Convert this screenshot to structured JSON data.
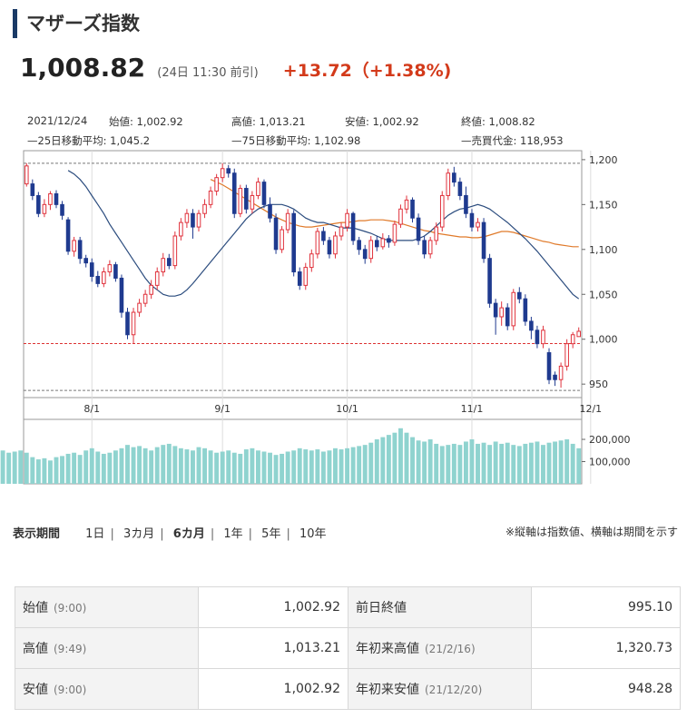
{
  "title": "マザーズ指数",
  "price": {
    "value": "1,008.82",
    "time": "(24日 11:30 前引)",
    "change": "+13.72（+1.38%)"
  },
  "info": {
    "date": "2021/12/24",
    "open_label": "始値: 1,002.92",
    "high_label": "高値: 1,013.21",
    "low_label": "安値: 1,002.92",
    "close_label": "終値: 1,008.82",
    "ma25_label": "—25日移動平均: 1,045.2",
    "ma75_label": "—75日移動平均: 1,102.98",
    "volume_label": "—売買代金: 118,953"
  },
  "chart_data": {
    "type": "candlestick",
    "price_axis": {
      "ticks": [
        "1,200",
        "1,150",
        "1,100",
        "1,050",
        "1,000",
        "950"
      ],
      "tick_values": [
        1200,
        1150,
        1100,
        1050,
        1000,
        950
      ],
      "range": [
        935,
        1210
      ]
    },
    "volume_axis": {
      "ticks": [
        "200,000",
        "100,000"
      ],
      "tick_values": [
        200000,
        100000
      ],
      "range": [
        0,
        290000
      ]
    },
    "x_ticks": [
      "8/1",
      "9/1",
      "10/1",
      "11/1",
      "12/1"
    ],
    "x_tick_index": [
      11,
      33,
      54,
      75,
      95
    ],
    "reference_lines": {
      "prev_close": 995.1,
      "high_line": 1196,
      "low_line": 943
    },
    "candles": [
      {
        "o": 1173,
        "c": 1193,
        "h": 1196,
        "l": 1170
      },
      {
        "o": 1173,
        "c": 1160,
        "h": 1178,
        "l": 1155
      },
      {
        "o": 1160,
        "c": 1140,
        "h": 1164,
        "l": 1136
      },
      {
        "o": 1140,
        "c": 1150,
        "h": 1156,
        "l": 1136
      },
      {
        "o": 1150,
        "c": 1162,
        "h": 1165,
        "l": 1144
      },
      {
        "o": 1162,
        "c": 1150,
        "h": 1166,
        "l": 1146
      },
      {
        "o": 1150,
        "c": 1138,
        "h": 1154,
        "l": 1133
      },
      {
        "o": 1133,
        "c": 1098,
        "h": 1136,
        "l": 1094
      },
      {
        "o": 1098,
        "c": 1110,
        "h": 1114,
        "l": 1092
      },
      {
        "o": 1110,
        "c": 1090,
        "h": 1114,
        "l": 1084
      },
      {
        "o": 1090,
        "c": 1085,
        "h": 1094,
        "l": 1080
      },
      {
        "o": 1085,
        "c": 1070,
        "h": 1090,
        "l": 1064
      },
      {
        "o": 1070,
        "c": 1062,
        "h": 1076,
        "l": 1058
      },
      {
        "o": 1062,
        "c": 1075,
        "h": 1080,
        "l": 1058
      },
      {
        "o": 1075,
        "c": 1083,
        "h": 1088,
        "l": 1070
      },
      {
        "o": 1083,
        "c": 1068,
        "h": 1086,
        "l": 1064
      },
      {
        "o": 1068,
        "c": 1030,
        "h": 1072,
        "l": 1024
      },
      {
        "o": 1030,
        "c": 1005,
        "h": 1035,
        "l": 1000
      },
      {
        "o": 1005,
        "c": 1030,
        "h": 1035,
        "l": 995
      },
      {
        "o": 1030,
        "c": 1040,
        "h": 1045,
        "l": 1025
      },
      {
        "o": 1040,
        "c": 1050,
        "h": 1055,
        "l": 1036
      },
      {
        "o": 1050,
        "c": 1060,
        "h": 1066,
        "l": 1045
      },
      {
        "o": 1060,
        "c": 1075,
        "h": 1080,
        "l": 1055
      },
      {
        "o": 1075,
        "c": 1090,
        "h": 1096,
        "l": 1070
      },
      {
        "o": 1090,
        "c": 1082,
        "h": 1095,
        "l": 1078
      },
      {
        "o": 1082,
        "c": 1115,
        "h": 1120,
        "l": 1078
      },
      {
        "o": 1115,
        "c": 1130,
        "h": 1135,
        "l": 1110
      },
      {
        "o": 1130,
        "c": 1140,
        "h": 1145,
        "l": 1124
      },
      {
        "o": 1140,
        "c": 1125,
        "h": 1145,
        "l": 1112
      },
      {
        "o": 1125,
        "c": 1140,
        "h": 1144,
        "l": 1120
      },
      {
        "o": 1140,
        "c": 1150,
        "h": 1156,
        "l": 1135
      },
      {
        "o": 1150,
        "c": 1165,
        "h": 1170,
        "l": 1146
      },
      {
        "o": 1165,
        "c": 1180,
        "h": 1184,
        "l": 1160
      },
      {
        "o": 1180,
        "c": 1190,
        "h": 1196,
        "l": 1175
      },
      {
        "o": 1190,
        "c": 1185,
        "h": 1194,
        "l": 1180
      },
      {
        "o": 1185,
        "c": 1140,
        "h": 1190,
        "l": 1135
      },
      {
        "o": 1140,
        "c": 1168,
        "h": 1172,
        "l": 1136
      },
      {
        "o": 1168,
        "c": 1145,
        "h": 1172,
        "l": 1140
      },
      {
        "o": 1145,
        "c": 1160,
        "h": 1165,
        "l": 1140
      },
      {
        "o": 1160,
        "c": 1175,
        "h": 1180,
        "l": 1156
      },
      {
        "o": 1175,
        "c": 1150,
        "h": 1178,
        "l": 1146
      },
      {
        "o": 1150,
        "c": 1135,
        "h": 1158,
        "l": 1130
      },
      {
        "o": 1135,
        "c": 1100,
        "h": 1140,
        "l": 1095
      },
      {
        "o": 1100,
        "c": 1122,
        "h": 1126,
        "l": 1096
      },
      {
        "o": 1122,
        "c": 1140,
        "h": 1145,
        "l": 1118
      },
      {
        "o": 1140,
        "c": 1075,
        "h": 1144,
        "l": 1070
      },
      {
        "o": 1075,
        "c": 1060,
        "h": 1080,
        "l": 1055
      },
      {
        "o": 1060,
        "c": 1080,
        "h": 1085,
        "l": 1055
      },
      {
        "o": 1080,
        "c": 1095,
        "h": 1100,
        "l": 1075
      },
      {
        "o": 1095,
        "c": 1120,
        "h": 1124,
        "l": 1090
      },
      {
        "o": 1120,
        "c": 1110,
        "h": 1125,
        "l": 1105
      },
      {
        "o": 1110,
        "c": 1095,
        "h": 1114,
        "l": 1090
      },
      {
        "o": 1095,
        "c": 1115,
        "h": 1120,
        "l": 1090
      },
      {
        "o": 1115,
        "c": 1125,
        "h": 1130,
        "l": 1110
      },
      {
        "o": 1125,
        "c": 1140,
        "h": 1145,
        "l": 1120
      },
      {
        "o": 1140,
        "c": 1110,
        "h": 1142,
        "l": 1105
      },
      {
        "o": 1110,
        "c": 1100,
        "h": 1114,
        "l": 1094
      },
      {
        "o": 1100,
        "c": 1090,
        "h": 1105,
        "l": 1084
      },
      {
        "o": 1090,
        "c": 1110,
        "h": 1115,
        "l": 1085
      },
      {
        "o": 1110,
        "c": 1103,
        "h": 1115,
        "l": 1098
      },
      {
        "o": 1103,
        "c": 1112,
        "h": 1118,
        "l": 1100
      },
      {
        "o": 1112,
        "c": 1108,
        "h": 1116,
        "l": 1102
      },
      {
        "o": 1108,
        "c": 1128,
        "h": 1132,
        "l": 1104
      },
      {
        "o": 1128,
        "c": 1145,
        "h": 1150,
        "l": 1124
      },
      {
        "o": 1145,
        "c": 1155,
        "h": 1160,
        "l": 1140
      },
      {
        "o": 1155,
        "c": 1135,
        "h": 1158,
        "l": 1130
      },
      {
        "o": 1135,
        "c": 1110,
        "h": 1140,
        "l": 1105
      },
      {
        "o": 1110,
        "c": 1095,
        "h": 1115,
        "l": 1090
      },
      {
        "o": 1095,
        "c": 1110,
        "h": 1114,
        "l": 1090
      },
      {
        "o": 1110,
        "c": 1125,
        "h": 1130,
        "l": 1105
      },
      {
        "o": 1125,
        "c": 1160,
        "h": 1165,
        "l": 1120
      },
      {
        "o": 1160,
        "c": 1185,
        "h": 1190,
        "l": 1155
      },
      {
        "o": 1185,
        "c": 1175,
        "h": 1192,
        "l": 1170
      },
      {
        "o": 1175,
        "c": 1160,
        "h": 1180,
        "l": 1155
      },
      {
        "o": 1160,
        "c": 1140,
        "h": 1170,
        "l": 1135
      },
      {
        "o": 1140,
        "c": 1125,
        "h": 1145,
        "l": 1120
      },
      {
        "o": 1125,
        "c": 1130,
        "h": 1135,
        "l": 1120
      },
      {
        "o": 1130,
        "c": 1090,
        "h": 1135,
        "l": 1085
      },
      {
        "o": 1090,
        "c": 1040,
        "h": 1095,
        "l": 1035
      },
      {
        "o": 1040,
        "c": 1025,
        "h": 1045,
        "l": 1005
      },
      {
        "o": 1025,
        "c": 1035,
        "h": 1042,
        "l": 1015
      },
      {
        "o": 1035,
        "c": 1015,
        "h": 1040,
        "l": 1010
      },
      {
        "o": 1015,
        "c": 1052,
        "h": 1056,
        "l": 1010
      },
      {
        "o": 1052,
        "c": 1045,
        "h": 1058,
        "l": 1040
      },
      {
        "o": 1045,
        "c": 1020,
        "h": 1050,
        "l": 1015
      },
      {
        "o": 1020,
        "c": 1010,
        "h": 1025,
        "l": 1000
      },
      {
        "o": 1010,
        "c": 995,
        "h": 1015,
        "l": 990
      },
      {
        "o": 995,
        "c": 1010,
        "h": 1015,
        "l": 990
      },
      {
        "o": 985,
        "c": 955,
        "h": 990,
        "l": 950
      },
      {
        "o": 960,
        "c": 955,
        "h": 964,
        "l": 948
      },
      {
        "o": 955,
        "c": 970,
        "h": 974,
        "l": 946
      },
      {
        "o": 970,
        "c": 995,
        "h": 1000,
        "l": 965
      },
      {
        "o": 995,
        "c": 1005,
        "h": 1008,
        "l": 990
      },
      {
        "o": 1002.92,
        "c": 1008.82,
        "h": 1013.21,
        "l": 1002.92
      }
    ],
    "ma25": [
      1188,
      1184,
      1178,
      1170,
      1160,
      1150,
      1140,
      1128,
      1118,
      1108,
      1098,
      1088,
      1078,
      1068,
      1060,
      1055,
      1050,
      1048,
      1048,
      1050,
      1055,
      1062,
      1070,
      1078,
      1086,
      1094,
      1102,
      1110,
      1118,
      1126,
      1134,
      1140,
      1145,
      1148,
      1150,
      1150,
      1150,
      1148,
      1145,
      1140,
      1135,
      1132,
      1130,
      1130,
      1128,
      1126,
      1124,
      1124,
      1124,
      1122,
      1120,
      1118,
      1115,
      1112,
      1110,
      1110,
      1110,
      1110,
      1110,
      1112,
      1115,
      1120,
      1126,
      1132,
      1138,
      1142,
      1145,
      1146,
      1148,
      1150,
      1148,
      1145,
      1140,
      1135,
      1130,
      1124,
      1118,
      1112,
      1105,
      1098,
      1090,
      1082,
      1074,
      1066,
      1058,
      1050,
      1045
    ],
    "ma75": [
      1178,
      1175,
      1172,
      1168,
      1164,
      1160,
      1156,
      1152,
      1148,
      1144,
      1140,
      1136,
      1133,
      1130,
      1128,
      1126,
      1125,
      1125,
      1126,
      1127,
      1128,
      1129,
      1130,
      1130,
      1131,
      1132,
      1132,
      1133,
      1133,
      1133,
      1132,
      1131,
      1129,
      1127,
      1125,
      1123,
      1121,
      1120,
      1118,
      1117,
      1116,
      1115,
      1114,
      1114,
      1113,
      1113,
      1114,
      1116,
      1118,
      1120,
      1120,
      1119,
      1117,
      1115,
      1113,
      1111,
      1109,
      1108,
      1106,
      1105,
      1104,
      1103,
      1103
    ],
    "volumes": [
      175000,
      168000,
      160000,
      150000,
      140000,
      145000,
      150000,
      140000,
      120000,
      110000,
      115000,
      105000,
      120000,
      125000,
      135000,
      140000,
      130000,
      150000,
      160000,
      145000,
      135000,
      140000,
      150000,
      160000,
      175000,
      165000,
      170000,
      160000,
      150000,
      165000,
      175000,
      180000,
      170000,
      160000,
      155000,
      150000,
      165000,
      160000,
      150000,
      140000,
      145000,
      150000,
      140000,
      135000,
      155000,
      160000,
      150000,
      145000,
      140000,
      130000,
      135000,
      145000,
      150000,
      160000,
      155000,
      150000,
      155000,
      145000,
      150000,
      160000,
      155000,
      160000,
      165000,
      170000,
      175000,
      185000,
      200000,
      210000,
      220000,
      230000,
      250000,
      230000,
      210000,
      195000,
      190000,
      200000,
      180000,
      170000,
      175000,
      180000,
      175000,
      190000,
      200000,
      180000,
      185000,
      175000,
      190000,
      180000,
      185000,
      175000,
      170000,
      180000,
      185000,
      190000,
      175000,
      185000,
      190000,
      195000,
      200000,
      180000,
      160000
    ]
  },
  "period": {
    "label": "表示期間",
    "options": [
      "1日",
      "3カ月",
      "6カ月",
      "1年",
      "5年",
      "10年"
    ]
  },
  "note": "※縦軸は指数値、横軸は期間を示す",
  "stats": [
    {
      "l1": "始値",
      "s1": "(9:00)",
      "v1": "1,002.92",
      "l2": "前日終値",
      "s2": "",
      "v2": "995.10"
    },
    {
      "l1": "高値",
      "s1": "(9:49)",
      "v1": "1,013.21",
      "l2": "年初来高値",
      "s2": "(21/2/16)",
      "v2": "1,320.73"
    },
    {
      "l1": "安値",
      "s1": "(9:00)",
      "v1": "1,002.92",
      "l2": "年初来安値",
      "s2": "(21/12/20)",
      "v2": "948.28"
    }
  ],
  "colors": {
    "up": "#e0323c",
    "down": "#1f3a8f",
    "ma25": "#2b4c7e",
    "ma75": "#e07a2a",
    "volume": "#8fd3cf",
    "title_bar": "#1a3a66",
    "change": "#d33a1a"
  }
}
